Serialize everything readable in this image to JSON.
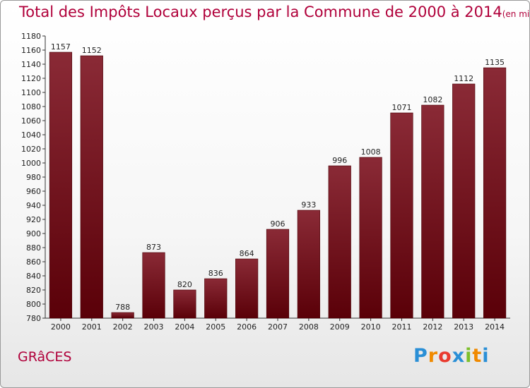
{
  "title": "Total des Impôts Locaux perçus par la Commune de 2000 à 2014",
  "unit_note": "(en milliers d'€)",
  "commune_name": "GRâCES",
  "brand": {
    "letters": [
      "P",
      "r",
      "o",
      "x",
      "i",
      "t",
      "i"
    ],
    "colors": [
      "#2a8fd6",
      "#f08a00",
      "#e93b2f",
      "#2a8fd6",
      "#7cbf2a",
      "#f08a00",
      "#2a8fd6"
    ]
  },
  "colors": {
    "bar_top": "#8a2a36",
    "bar_bottom": "#5a0008",
    "accent": "#b0003a"
  },
  "chart_data": {
    "type": "bar",
    "title": "Total des Impôts Locaux perçus par la Commune de 2000 à 2014",
    "categories": [
      "2000",
      "2001",
      "2002",
      "2003",
      "2004",
      "2005",
      "2006",
      "2007",
      "2008",
      "2009",
      "2010",
      "2011",
      "2012",
      "2013",
      "2014"
    ],
    "values": [
      1157,
      1152,
      788,
      873,
      820,
      836,
      864,
      906,
      933,
      996,
      1008,
      1071,
      1082,
      1112,
      1135
    ],
    "ylim": [
      780,
      1180
    ],
    "ytick_step": 20,
    "grid": false,
    "value_labels": true
  }
}
